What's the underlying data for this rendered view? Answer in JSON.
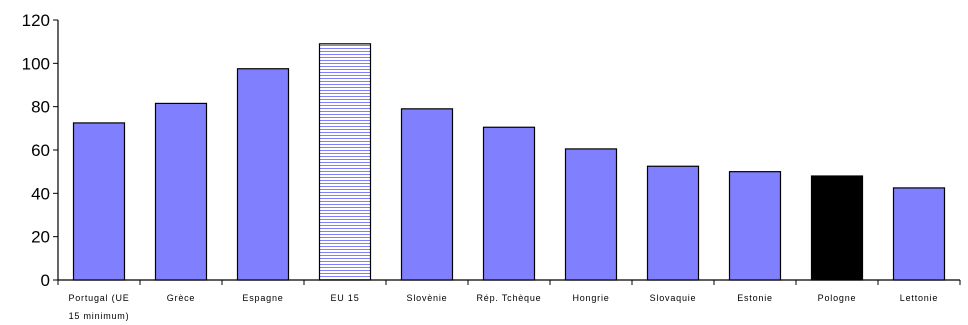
{
  "chart_data": {
    "type": "bar",
    "categories": [
      "Portugal (UE 15 minimum)",
      "Grèce",
      "Espagne",
      "EU 15",
      "Slovènie",
      "Rép. Tchèque",
      "Hongrie",
      "Slovaquie",
      "Estonie",
      "Pologne",
      "Lettonie"
    ],
    "category_lines": [
      [
        "Portugal (UE",
        "15 minimum)"
      ],
      [
        "Grèce"
      ],
      [
        "Espagne"
      ],
      [
        "EU 15"
      ],
      [
        "Slovènie"
      ],
      [
        "Rép. Tchèque"
      ],
      [
        "Hongrie"
      ],
      [
        "Slovaquie"
      ],
      [
        "Estonie"
      ],
      [
        "Pologne"
      ],
      [
        "Lettonie"
      ]
    ],
    "values": [
      72.5,
      81.5,
      97.5,
      109,
      79,
      70.5,
      60.5,
      52.5,
      50,
      48,
      42.5
    ],
    "bar_styles": [
      "solid",
      "solid",
      "solid",
      "hatched",
      "solid",
      "solid",
      "solid",
      "solid",
      "solid",
      "highlight",
      "solid"
    ],
    "yticks": [
      "0",
      "20",
      "40",
      "60",
      "80",
      "100",
      "120"
    ],
    "ylim": [
      0,
      120
    ],
    "title": "",
    "xlabel": "",
    "ylabel": "",
    "grid": false,
    "legend": "none",
    "colors": {
      "bar": "#8080ff",
      "highlight": "#000000",
      "hatch_line": "#8080ff",
      "hatch_bg": "#ffffff",
      "outline": "#000000"
    }
  }
}
